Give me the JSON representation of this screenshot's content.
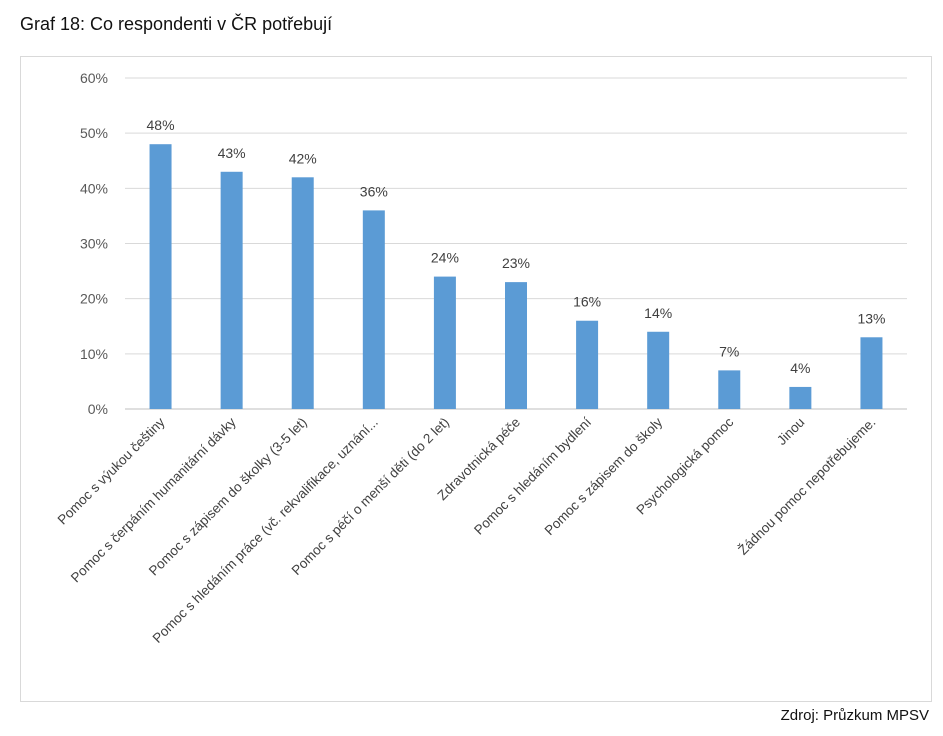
{
  "header": {
    "title": "Graf 18: Co respondenti v ČR potřebují"
  },
  "footer": {
    "source": "Zdroj: Průzkum MPSV"
  },
  "chart_data": {
    "type": "bar",
    "title": "",
    "xlabel": "",
    "ylabel": "",
    "ylim": [
      0,
      60
    ],
    "yticks": [
      "0%",
      "10%",
      "20%",
      "30%",
      "40%",
      "50%",
      "60%"
    ],
    "grid": true,
    "bar_color": "#5b9bd5",
    "categories": [
      "Pomoc s výukou češtiny",
      "Pomoc s čerpáním humanitární dávky",
      "Pomoc s zápisem do školky (3-5 let)",
      "Pomoc s hledáním práce (vč. rekvalifikace, uznání...",
      "Pomoc s péčí o menší děti (do 2 let)",
      "Zdravotnická péče",
      "Pomoc s hledáním bydlení",
      "Pomoc s zápisem do školy",
      "Psychologická pomoc",
      "Jinou",
      "Žádnou pomoc nepotřebujeme."
    ],
    "values": [
      48,
      43,
      42,
      36,
      24,
      23,
      16,
      14,
      7,
      4,
      13
    ],
    "data_labels": [
      "48%",
      "43%",
      "42%",
      "36%",
      "24%",
      "23%",
      "16%",
      "14%",
      "7%",
      "4%",
      "13%"
    ]
  }
}
